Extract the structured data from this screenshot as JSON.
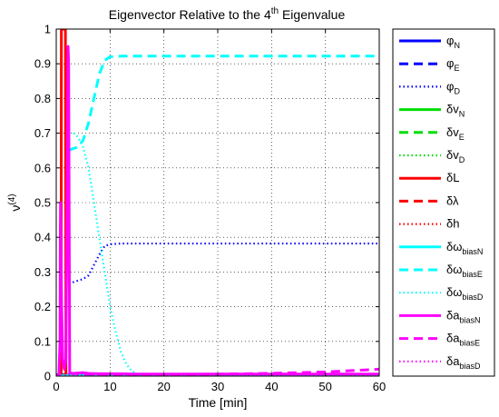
{
  "chart_data": {
    "type": "line",
    "title": "Eigenvector Relative to the 4th Eigenvalue",
    "title_parts": {
      "prefix": "Eigenvector Relative to the 4",
      "sup": "th",
      "suffix": " Eigenvalue"
    },
    "xlabel": "Time [min]",
    "ylabel": "ν(4)",
    "ylabel_parts": {
      "base": "ν",
      "sup": "(4)"
    },
    "xlim": [
      0,
      60
    ],
    "ylim": [
      0,
      1
    ],
    "xticks": [
      "0",
      "10",
      "20",
      "30",
      "40",
      "50",
      "60"
    ],
    "yticks": [
      "0",
      "0.1",
      "0.2",
      "0.3",
      "0.4",
      "0.5",
      "0.6",
      "0.7",
      "0.8",
      "0.9",
      "1"
    ],
    "grid": true,
    "legend_position": "outside-right",
    "series": [
      {
        "name": "φN",
        "base": "φ",
        "sub": "N",
        "color": "#0000ff",
        "style": "solid",
        "x": [
          0,
          60
        ],
        "y": [
          0.003,
          0.003
        ]
      },
      {
        "name": "φE",
        "base": "φ",
        "sub": "E",
        "color": "#0000ff",
        "style": "dashed",
        "x": [
          0,
          60
        ],
        "y": [
          0.004,
          0.004
        ]
      },
      {
        "name": "φD",
        "base": "φ",
        "sub": "D",
        "color": "#0000ff",
        "style": "dotted",
        "x": [
          2.3,
          3,
          4,
          5,
          6,
          7,
          8,
          9,
          10,
          12,
          20,
          30,
          40,
          50,
          60
        ],
        "y": [
          0.27,
          0.27,
          0.275,
          0.28,
          0.29,
          0.32,
          0.35,
          0.375,
          0.38,
          0.382,
          0.382,
          0.382,
          0.382,
          0.382,
          0.382
        ]
      },
      {
        "name": "δvN",
        "base": "δv",
        "sub": "N",
        "color": "#00dd00",
        "style": "solid",
        "x": [
          0,
          60
        ],
        "y": [
          0.001,
          0.001
        ]
      },
      {
        "name": "δvE",
        "base": "δv",
        "sub": "E",
        "color": "#00dd00",
        "style": "dashed",
        "x": [
          0,
          60
        ],
        "y": [
          0.002,
          0.002
        ]
      },
      {
        "name": "δvD",
        "base": "δv",
        "sub": "D",
        "color": "#00dd00",
        "style": "dotted",
        "x": [
          0,
          60
        ],
        "y": [
          0.001,
          0.001
        ]
      },
      {
        "name": "δL",
        "base": "δL",
        "sub": "",
        "color": "#ff0000",
        "style": "solid",
        "x": [
          0.9,
          0.95,
          1.0,
          1.05,
          1.1,
          1.4,
          1.6,
          1.7,
          1.75,
          1.8
        ],
        "y": [
          0,
          1,
          1,
          1,
          1,
          1,
          1,
          1,
          0.5,
          0
        ]
      },
      {
        "name": "δλ",
        "base": "δλ",
        "sub": "",
        "color": "#ff0000",
        "style": "dashed",
        "x": [
          0,
          60
        ],
        "y": [
          0.001,
          0.001
        ]
      },
      {
        "name": "δh",
        "base": "δh",
        "sub": "",
        "color": "#ff0000",
        "style": "dotted",
        "x": [
          0,
          60
        ],
        "y": [
          0.001,
          0.001
        ]
      },
      {
        "name": "δωbiasN",
        "base": "δω",
        "sub": "biasN",
        "color": "#00ffff",
        "style": "solid",
        "x": [
          0,
          60
        ],
        "y": [
          0.001,
          0.001
        ]
      },
      {
        "name": "δωbiasE",
        "base": "δω",
        "sub": "biasE",
        "color": "#00ffff",
        "style": "dashed",
        "x": [
          2.3,
          3,
          4,
          5,
          6,
          7,
          8,
          9,
          10,
          12,
          20,
          30,
          40,
          50,
          60
        ],
        "y": [
          0.65,
          0.655,
          0.66,
          0.68,
          0.73,
          0.8,
          0.87,
          0.91,
          0.92,
          0.922,
          0.922,
          0.922,
          0.922,
          0.922,
          0.922
        ]
      },
      {
        "name": "δωbiasD",
        "base": "δω",
        "sub": "biasD",
        "color": "#00ffff",
        "style": "dotted",
        "x": [
          3.2,
          4,
          5,
          6,
          7,
          8,
          9,
          10,
          11,
          12,
          13,
          14,
          15,
          17,
          20,
          60
        ],
        "y": [
          0.7,
          0.69,
          0.66,
          0.6,
          0.5,
          0.4,
          0.3,
          0.2,
          0.13,
          0.07,
          0.035,
          0.015,
          0.007,
          0.004,
          0.003,
          0.003
        ]
      },
      {
        "name": "δabiasN",
        "base": "δa",
        "sub": "biasN",
        "color": "#ff00ff",
        "style": "solid",
        "x": [
          0,
          0.5,
          0.7,
          0.75,
          0.8,
          1.0,
          1.2,
          1.5,
          1.8,
          2.0,
          2.2,
          2.3,
          2.5,
          3,
          4,
          5,
          6,
          8,
          10,
          15,
          20,
          30,
          40,
          50,
          60
        ],
        "y": [
          0,
          0.005,
          0.1,
          0.4,
          0.5,
          0.2,
          0.05,
          0.02,
          0.05,
          0.5,
          0.95,
          0.9,
          0.01,
          0.008,
          0.009,
          0.01,
          0.008,
          0.007,
          0.007,
          0.006,
          0.006,
          0.006,
          0.006,
          0.006,
          0.006
        ]
      },
      {
        "name": "δabiasE",
        "base": "δa",
        "sub": "biasE",
        "color": "#ff00ff",
        "style": "dashed",
        "x": [
          2.5,
          5,
          10,
          15,
          20,
          25,
          30,
          35,
          40,
          45,
          50,
          55,
          60
        ],
        "y": [
          0.008,
          0.006,
          0.005,
          0.005,
          0.005,
          0.005,
          0.006,
          0.007,
          0.008,
          0.01,
          0.012,
          0.016,
          0.02
        ]
      },
      {
        "name": "δabiasD",
        "base": "δa",
        "sub": "biasD",
        "color": "#ff00ff",
        "style": "dotted",
        "x": [
          0,
          60
        ],
        "y": [
          0.001,
          0.001
        ]
      }
    ]
  }
}
